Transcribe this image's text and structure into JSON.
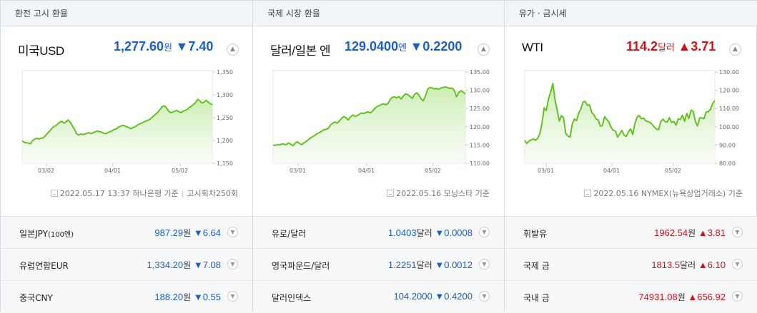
{
  "panels": [
    {
      "title": "환전 고시 환율",
      "main": {
        "name": "미국USD",
        "value": "1,277.60",
        "unit": "원",
        "dir": "down",
        "arrow": "▼",
        "change": "7.40"
      },
      "chart_data": {
        "type": "area",
        "x_ticks": [
          "03/02",
          "04/01",
          "05/02"
        ],
        "y_ticks": [
          "1,350",
          "1,300",
          "1,250",
          "1,200",
          "1,150"
        ],
        "ylim": [
          1150,
          1350
        ],
        "values": [
          1199,
          1196,
          1195,
          1194,
          1193,
          1200,
          1203,
          1205,
          1203,
          1205,
          1206,
          1210,
          1215,
          1220,
          1225,
          1230,
          1232,
          1236,
          1240,
          1242,
          1238,
          1241,
          1245,
          1240,
          1232,
          1225,
          1215,
          1212,
          1214,
          1213,
          1214,
          1216,
          1217,
          1215,
          1217,
          1219,
          1221,
          1219,
          1218,
          1216,
          1215,
          1217,
          1219,
          1221,
          1224,
          1225,
          1229,
          1231,
          1233,
          1232,
          1230,
          1228,
          1226,
          1228,
          1230,
          1233,
          1236,
          1238,
          1240,
          1242,
          1244,
          1246,
          1250,
          1254,
          1258,
          1262,
          1268,
          1274,
          1276,
          1272,
          1265,
          1261,
          1262,
          1264,
          1266,
          1263,
          1261,
          1264,
          1266,
          1268,
          1272,
          1275,
          1279,
          1283,
          1290,
          1287,
          1282,
          1284,
          1288,
          1284,
          1281,
          1278
        ],
        "line_color": "#62c320"
      },
      "footer": {
        "date": "2022.05.17 13:37",
        "source": "하나은행 기준",
        "extra": "고시회차250회"
      },
      "rows": [
        {
          "name": "일본JPY",
          "name_small": "(100엔)",
          "value": "987.29",
          "unit": "원",
          "arrow": "▼",
          "change": "6.64",
          "dir": "down"
        },
        {
          "name": "유럽연합EUR",
          "name_small": "",
          "value": "1,334.20",
          "unit": "원",
          "arrow": "▼",
          "change": "7.08",
          "dir": "down"
        },
        {
          "name": "중국CNY",
          "name_small": "",
          "value": "188.20",
          "unit": "원",
          "arrow": "▼",
          "change": "0.55",
          "dir": "down"
        }
      ]
    },
    {
      "title": "국제 시장 환율",
      "main": {
        "name": "달러/일본 엔",
        "value": "129.0400",
        "unit": "엔",
        "dir": "down",
        "arrow": "▼",
        "change": "0.2200"
      },
      "chart_data": {
        "type": "area",
        "x_ticks": [
          "03/01",
          "04/01",
          "05/02"
        ],
        "y_ticks": [
          "135.00",
          "130.00",
          "125.00",
          "120.00",
          "115.00",
          "110.00"
        ],
        "ylim": [
          110,
          135
        ],
        "values": [
          115.0,
          114.9,
          115.1,
          115.0,
          115.3,
          115.2,
          115.1,
          115.6,
          115.2,
          114.8,
          115.5,
          115.9,
          115.4,
          115.1,
          115.6,
          116.0,
          116.5,
          117.0,
          117.3,
          117.7,
          118.1,
          118.4,
          118.8,
          119.2,
          119.3,
          119.6,
          120.5,
          121.0,
          121.3,
          121.0,
          121.6,
          122.3,
          122.8,
          122.5,
          121.9,
          122.7,
          123.2,
          122.9,
          123.0,
          123.4,
          123.8,
          123.6,
          123.9,
          124.1,
          123.8,
          124.3,
          125.0,
          125.5,
          125.8,
          126.1,
          126.3,
          126.0,
          126.4,
          127.5,
          128.1,
          128.2,
          127.9,
          128.3,
          127.6,
          128.5,
          129.0,
          128.8,
          128.3,
          127.8,
          128.9,
          129.3,
          128.7,
          127.6,
          127.1,
          128.5,
          130.3,
          130.8,
          130.6,
          130.4,
          130.5,
          130.3,
          130.6,
          130.8,
          130.9,
          130.7,
          130.5,
          130.6,
          130.0,
          128.2,
          129.4,
          129.9,
          129.5,
          129.0
        ],
        "line_color": "#62c320"
      },
      "footer": {
        "date": "2022.05.16",
        "source": "모닝스타 기준"
      },
      "rows": [
        {
          "name": "유로/달러",
          "name_small": "",
          "value": "1.0403",
          "unit": "달러",
          "arrow": "▼",
          "change": "0.0008",
          "dir": "down"
        },
        {
          "name": "영국파운드/달러",
          "name_small": "",
          "value": "1.2251",
          "unit": "달러",
          "arrow": "▼",
          "change": "0.0012",
          "dir": "down"
        },
        {
          "name": "달러인덱스",
          "name_small": "",
          "value": "104.2000",
          "unit": "",
          "arrow": "▼",
          "change": "0.4200",
          "dir": "down"
        }
      ]
    },
    {
      "title": "유가 · 금시세",
      "main": {
        "name": "WTI",
        "value": "114.2",
        "unit": "달러",
        "dir": "up",
        "arrow": "▲",
        "change": "3.71"
      },
      "chart_data": {
        "type": "area",
        "x_ticks": [
          "03/01",
          "04/01",
          "05/02"
        ],
        "y_ticks": [
          "130.00",
          "120.00",
          "110.00",
          "100.00",
          "90.00",
          "80.00"
        ],
        "ylim": [
          80,
          130
        ],
        "values": [
          92.5,
          90.9,
          92.2,
          92.8,
          93.3,
          92.6,
          93.7,
          96.2,
          102.0,
          110.4,
          108.9,
          115.1,
          119.1,
          123.7,
          115.2,
          109.5,
          103.1,
          106.1,
          105.0,
          96.4,
          95.0,
          94.3,
          101.6,
          104.2,
          103.4,
          107.6,
          109.7,
          113.6,
          113.9,
          111.7,
          112.1,
          107.8,
          106.6,
          104.3,
          103.8,
          100.3,
          100.8,
          105.6,
          104.0,
          102.6,
          99.6,
          98.1,
          97.6,
          94.3,
          96.2,
          98.0,
          95.4,
          94.7,
          97.2,
          98.9,
          95.8,
          101.8,
          105.3,
          106.2,
          104.4,
          104.7,
          103.3,
          102.9,
          102.4,
          101.3,
          99.8,
          98.7,
          98.4,
          102.9,
          104.2,
          102.8,
          102.6,
          105.0,
          102.3,
          102.9,
          100.9,
          104.3,
          104.0,
          106.3,
          103.0,
          107.3,
          104.5,
          109.1,
          108.4,
          102.8,
          100.5,
          104.9,
          104.8,
          104.5,
          108.1,
          108.3,
          109.6,
          112.9,
          114.2
        ],
        "line_color": "#62c320"
      },
      "footer": {
        "date": "2022.05.16",
        "source": "NYMEX(뉴욕상업거래소) 기준"
      },
      "rows": [
        {
          "name": "휘발유",
          "name_small": "",
          "value": "1962.54",
          "unit": "원",
          "arrow": "▲",
          "change": "3.81",
          "dir": "up"
        },
        {
          "name": "국제 금",
          "name_small": "",
          "value": "1813.5",
          "unit": "달러",
          "arrow": "▲",
          "change": "6.10",
          "dir": "up"
        },
        {
          "name": "국내 금",
          "name_small": "",
          "value": "74931.08",
          "unit": "원",
          "arrow": "▲",
          "change": "656.92",
          "dir": "up"
        }
      ]
    }
  ],
  "colors": {
    "down": "#1d5fc7",
    "up": "#d4111b"
  }
}
